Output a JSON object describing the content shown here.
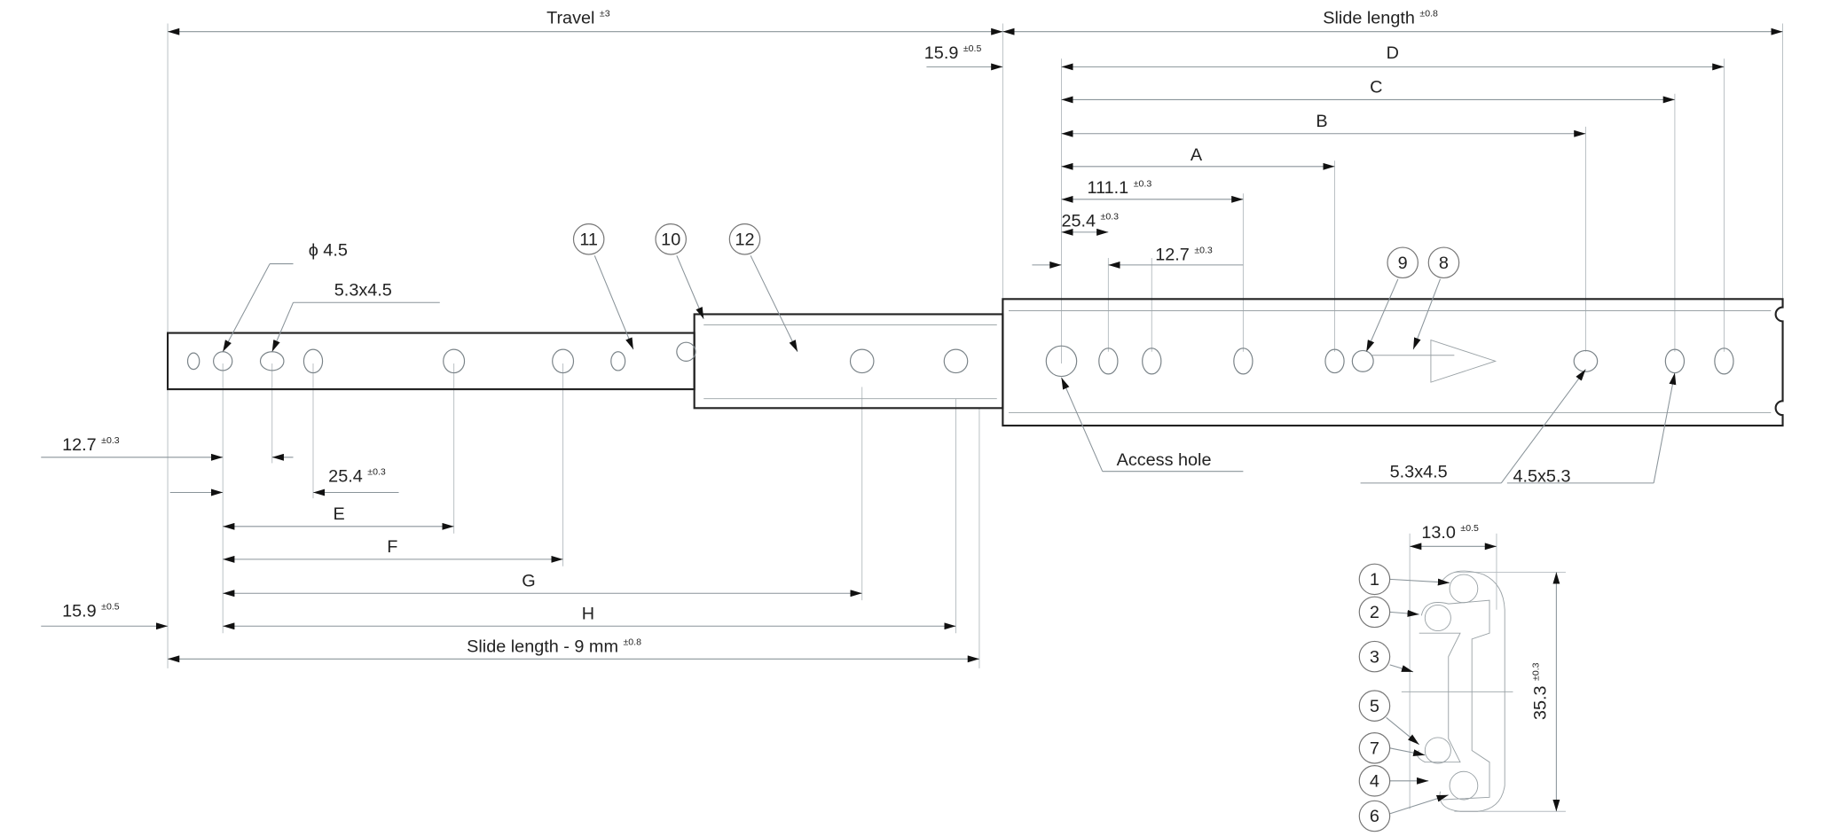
{
  "dimensions": {
    "travel": {
      "label": "Travel",
      "tol": "±3"
    },
    "slide_length": {
      "label": "Slide length",
      "tol": "±0.8"
    },
    "top_offset": {
      "label": "15.9",
      "tol": "±0.5"
    },
    "D": "D",
    "C": "C",
    "B": "B",
    "A": "A",
    "d111": {
      "label": "111.1",
      "tol": "±0.3"
    },
    "d25_top": {
      "label": "25.4",
      "tol": "±0.3"
    },
    "d12_top": {
      "label": "12.7",
      "tol": "±0.3"
    },
    "d12_bottom": {
      "label": "12.7",
      "tol": "±0.3"
    },
    "d25_bottom": {
      "label": "25.4",
      "tol": "±0.3"
    },
    "E": "E",
    "F": "F",
    "G": "G",
    "H": "H",
    "bottom_offset": {
      "label": "15.9",
      "tol": "±0.5"
    },
    "slide_length_minus": {
      "label": "Slide length - 9 mm",
      "tol": "±0.8"
    },
    "width": {
      "label": "13.0",
      "tol": "±0.5"
    },
    "height": {
      "label": "35.3",
      "tol": "±0.3"
    }
  },
  "annotations": {
    "phi": "ϕ 4.5",
    "slot_left": "5.3x4.5",
    "access_hole": "Access hole",
    "slot_right_a": "5.3x4.5",
    "slot_right_b": "4.5x5.3"
  },
  "callouts": {
    "c11": "11",
    "c10": "10",
    "c12": "12",
    "c9": "9",
    "c8": "8",
    "s1": "1",
    "s2": "2",
    "s3": "3",
    "s5": "5",
    "s7": "7",
    "s4": "4",
    "s6": "6"
  }
}
